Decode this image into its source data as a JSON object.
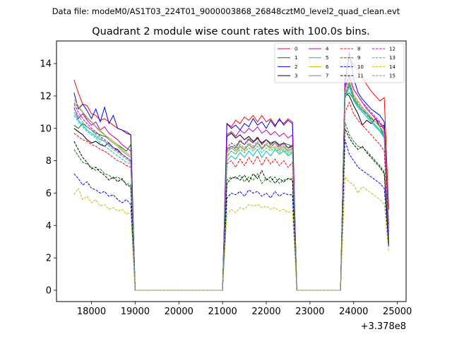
{
  "chart_data": {
    "type": "line",
    "suptitle": "Data file: modeM0/AS1T03_224T01_9000003868_26848cztM0_level2_quad_clean.evt",
    "title": "Quadrant 2 module wise count rates with 100.0s bins.",
    "xlabel": "",
    "ylabel": "",
    "x_offset_label": "+3.378e8",
    "xlim": [
      17200,
      25200
    ],
    "ylim": [
      -0.7,
      15.4
    ],
    "xticks": [
      18000,
      19000,
      20000,
      21000,
      22000,
      23000,
      24000,
      25000
    ],
    "xtick_labels": [
      "18000",
      "19000",
      "20000",
      "21000",
      "22000",
      "23000",
      "24000",
      "25000"
    ],
    "yticks": [
      0,
      2,
      4,
      6,
      8,
      10,
      12,
      14
    ],
    "ytick_labels": [
      "0",
      "2",
      "4",
      "6",
      "8",
      "10",
      "12",
      "14"
    ],
    "legend": {
      "position": "top-right",
      "columns": 4
    },
    "x_segments": [
      {
        "start": 17600,
        "end": 18900,
        "step": 100
      },
      {
        "start": 19000,
        "end": 21000,
        "step": 100
      },
      {
        "start": 21100,
        "end": 22600,
        "step": 100
      },
      {
        "start": 22700,
        "end": 23700,
        "step": 100
      },
      {
        "start": 23800,
        "end": 24800,
        "step": 100
      }
    ],
    "series": [
      {
        "name": "0",
        "color": "#ff0000",
        "dash": "solid",
        "seg1": [
          13.0,
          12.2,
          11.5,
          11.4,
          10.9,
          10.8,
          10.5,
          10.6,
          10.4,
          10.2,
          10.0,
          9.9,
          9.8,
          9.6
        ],
        "seg3": [
          10.3,
          10.1,
          10.5,
          10.3,
          10.7,
          10.5,
          10.8,
          10.4,
          10.8,
          10.4,
          10.6,
          10.2,
          10.5,
          10.3,
          10.6,
          10.4
        ],
        "seg5": [
          13.0,
          14.4,
          13.9,
          13.6,
          13.1,
          12.7,
          12.3,
          12.0,
          11.7,
          11.9,
          5.0
        ]
      },
      {
        "name": "1",
        "color": "#008000",
        "dash": "solid",
        "seg1": [
          10.2,
          10.0,
          10.3,
          10.1,
          9.9,
          9.7,
          9.6,
          9.5,
          9.4,
          9.2,
          9.0,
          8.8,
          8.6,
          9.0
        ],
        "seg3": [
          8.7,
          8.9,
          8.8,
          9.2,
          9.0,
          9.3,
          9.1,
          9.4,
          9.0,
          9.3,
          9.1,
          9.2,
          9.0,
          9.1,
          9.0,
          8.9
        ],
        "seg5": [
          12.0,
          12.2,
          11.8,
          11.4,
          11.1,
          10.9,
          10.6,
          10.4,
          10.1,
          9.5,
          3.0
        ]
      },
      {
        "name": "2",
        "color": "#0000ff",
        "dash": "solid",
        "seg1": [
          12.2,
          11.2,
          11.5,
          11.1,
          10.6,
          11.2,
          10.4,
          11.3,
          10.3,
          10.8,
          10.0,
          9.9,
          9.7,
          9.6
        ],
        "seg3": [
          10.3,
          10.0,
          10.2,
          9.9,
          10.3,
          10.1,
          10.6,
          10.2,
          10.4,
          10.0,
          10.5,
          10.1,
          10.6,
          10.2,
          10.5,
          10.3
        ],
        "seg5": [
          12.7,
          14.7,
          13.1,
          12.2,
          11.8,
          11.5,
          11.2,
          11.0,
          10.8,
          10.4,
          4.0
        ]
      },
      {
        "name": "3",
        "color": "#000000",
        "dash": "solid",
        "seg1": [
          10.0,
          9.8,
          9.6,
          9.3,
          9.1,
          9.2,
          9.0,
          8.9,
          9.1,
          8.8,
          8.7,
          8.4,
          8.2,
          8.0
        ],
        "seg3": [
          9.5,
          9.7,
          9.4,
          9.6,
          9.3,
          9.5,
          9.2,
          9.4,
          9.1,
          9.3,
          9.0,
          9.2,
          8.9,
          9.1,
          8.8,
          8.9
        ],
        "seg5": [
          12.2,
          12.0,
          11.4,
          10.9,
          10.2,
          10.5,
          10.3,
          10.6,
          10.1,
          10.2,
          3.5
        ]
      },
      {
        "name": "4",
        "color": "#bf00bf",
        "dash": "solid",
        "seg1": [
          11.3,
          10.6,
          10.9,
          10.5,
          10.2,
          10.4,
          9.9,
          10.1,
          9.7,
          9.5,
          9.3,
          9.0,
          8.8,
          8.6
        ],
        "seg3": [
          9.6,
          9.8,
          9.5,
          9.9,
          9.7,
          10.0,
          9.8,
          10.1,
          9.7,
          9.9,
          9.6,
          9.8,
          9.5,
          9.7,
          9.4,
          9.6
        ],
        "seg5": [
          12.5,
          13.2,
          12.4,
          12.0,
          11.6,
          11.2,
          10.9,
          10.6,
          10.3,
          9.9,
          3.8
        ]
      },
      {
        "name": "5",
        "color": "#00bfbf",
        "dash": "solid",
        "seg1": [
          11.0,
          10.5,
          10.2,
          9.9,
          9.7,
          9.5,
          9.3,
          9.2,
          9.0,
          8.8,
          8.6,
          8.4,
          8.2,
          8.0
        ],
        "seg3": [
          8.0,
          8.3,
          8.1,
          8.5,
          8.2,
          8.6,
          8.3,
          8.7,
          8.2,
          8.6,
          8.3,
          8.7,
          8.4,
          8.6,
          8.3,
          8.5
        ],
        "seg5": [
          11.8,
          12.6,
          11.7,
          11.3,
          11.0,
          10.7,
          10.4,
          10.1,
          9.8,
          9.4,
          3.2
        ]
      },
      {
        "name": "6",
        "color": "#bfbf00",
        "dash": "solid",
        "seg1": [
          11.8,
          11.4,
          11.0,
          10.7,
          10.4,
          10.1,
          9.9,
          9.6,
          9.4,
          9.2,
          9.0,
          8.7,
          8.5,
          8.3
        ],
        "seg3": [
          8.2,
          8.6,
          8.4,
          8.9,
          8.6,
          9.0,
          8.7,
          9.1,
          8.8,
          9.0,
          8.7,
          8.9,
          8.6,
          8.8,
          8.5,
          8.7
        ],
        "seg5": [
          12.3,
          13.0,
          12.1,
          11.7,
          11.3,
          11.0,
          10.7,
          10.4,
          10.1,
          9.7,
          3.3
        ]
      },
      {
        "name": "7",
        "color": "#808080",
        "dash": "solid",
        "seg1": [
          11.6,
          11.3,
          11.0,
          10.6,
          10.4,
          10.1,
          9.8,
          9.6,
          9.3,
          9.1,
          8.9,
          8.6,
          8.4,
          8.2
        ],
        "seg3": [
          8.5,
          8.8,
          8.6,
          8.9,
          8.7,
          9.0,
          8.8,
          9.1,
          8.7,
          9.0,
          8.8,
          9.1,
          8.7,
          8.9,
          8.6,
          8.8
        ],
        "seg5": [
          12.0,
          12.8,
          11.9,
          11.5,
          11.2,
          10.9,
          10.5,
          10.2,
          9.9,
          9.5,
          3.4
        ]
      },
      {
        "name": "8",
        "color": "#ff0000",
        "dash": "dashed",
        "seg1": [
          9.7,
          9.5,
          9.3,
          9.2,
          9.0,
          8.9,
          8.7,
          8.6,
          8.4,
          8.2,
          8.0,
          7.9,
          7.7,
          7.6
        ],
        "seg3": [
          7.8,
          8.0,
          7.6,
          8.1,
          7.7,
          8.2,
          7.8,
          8.3,
          7.7,
          8.2,
          7.8,
          8.1,
          7.7,
          8.0,
          7.6,
          7.9
        ],
        "seg5": [
          11.0,
          11.6,
          10.9,
          10.5,
          10.2,
          9.9,
          9.6,
          9.3,
          9.0,
          8.6,
          3.0
        ]
      },
      {
        "name": "9",
        "color": "#008000",
        "dash": "dashed",
        "seg1": [
          8.7,
          8.3,
          7.9,
          7.8,
          7.6,
          7.4,
          7.5,
          7.2,
          7.1,
          6.9,
          7.0,
          6.8,
          6.6,
          6.5
        ],
        "seg3": [
          6.8,
          7.0,
          6.9,
          7.1,
          6.7,
          7.0,
          6.8,
          7.2,
          6.6,
          6.9,
          6.7,
          7.0,
          6.6,
          6.8,
          6.9,
          6.9
        ],
        "seg5": [
          10.4,
          9.6,
          9.2,
          8.9,
          8.8,
          8.6,
          8.3,
          8.0,
          7.7,
          7.3,
          2.9
        ]
      },
      {
        "name": "10",
        "color": "#0000ff",
        "dash": "dashed",
        "seg1": [
          7.2,
          6.9,
          6.5,
          6.7,
          6.3,
          6.2,
          6.0,
          6.1,
          5.8,
          5.9,
          5.6,
          5.4,
          5.6,
          5.3
        ],
        "seg3": [
          5.7,
          6.0,
          5.9,
          6.1,
          5.8,
          6.2,
          6.0,
          6.1,
          5.8,
          6.0,
          5.7,
          6.1,
          5.8,
          6.0,
          5.9,
          5.9
        ],
        "seg5": [
          9.3,
          8.4,
          8.0,
          7.6,
          7.4,
          7.2,
          7.0,
          6.8,
          6.6,
          6.3,
          2.7
        ]
      },
      {
        "name": "11",
        "color": "#000000",
        "dash": "dashed",
        "seg1": [
          9.2,
          8.7,
          8.2,
          7.9,
          7.5,
          7.6,
          7.3,
          7.1,
          6.8,
          7.0,
          6.7,
          6.9,
          6.5,
          6.4
        ],
        "seg3": [
          6.6,
          6.9,
          7.0,
          6.8,
          7.1,
          6.7,
          7.2,
          6.9,
          7.4,
          6.8,
          7.0,
          6.6,
          6.9,
          6.7,
          6.9,
          6.8
        ],
        "seg5": [
          10.0,
          9.4,
          9.0,
          8.7,
          8.9,
          8.5,
          8.2,
          7.9,
          7.6,
          7.2,
          2.8
        ]
      },
      {
        "name": "12",
        "color": "#bf00bf",
        "dash": "dashed",
        "seg1": [
          11.5,
          11.0,
          10.6,
          10.3,
          10.0,
          9.8,
          9.5,
          9.3,
          9.1,
          8.8,
          8.6,
          8.4,
          8.2,
          8.0
        ],
        "seg3": [
          8.8,
          9.1,
          8.9,
          9.3,
          9.0,
          9.4,
          9.1,
          9.5,
          9.0,
          9.3,
          9.0,
          9.2,
          8.9,
          9.1,
          8.8,
          9.0
        ],
        "seg5": [
          12.6,
          13.3,
          12.4,
          12.0,
          11.6,
          11.3,
          11.0,
          10.7,
          10.4,
          10.0,
          3.6
        ]
      },
      {
        "name": "13",
        "color": "#00bfbf",
        "dash": "dashed",
        "seg1": [
          10.8,
          10.4,
          10.1,
          9.8,
          9.6,
          9.4,
          9.1,
          8.9,
          8.7,
          8.5,
          8.3,
          8.1,
          7.9,
          7.8
        ],
        "seg3": [
          8.3,
          8.6,
          8.4,
          8.7,
          8.5,
          8.8,
          8.6,
          8.9,
          8.5,
          8.8,
          8.6,
          8.8,
          8.5,
          8.7,
          8.4,
          8.6
        ],
        "seg5": [
          11.9,
          12.7,
          11.8,
          11.4,
          11.1,
          10.8,
          10.5,
          10.2,
          9.9,
          9.5,
          3.3
        ]
      },
      {
        "name": "14",
        "color": "#bfbf00",
        "dash": "dashed",
        "seg1": [
          5.9,
          6.3,
          5.6,
          5.8,
          5.4,
          5.6,
          5.2,
          5.3,
          5.0,
          5.1,
          4.9,
          5.0,
          4.7,
          4.8
        ],
        "seg3": [
          4.7,
          5.0,
          4.8,
          5.1,
          5.0,
          5.3,
          5.2,
          5.3,
          5.1,
          5.2,
          5.0,
          5.1,
          4.9,
          5.0,
          4.8,
          4.9
        ],
        "seg5": [
          7.0,
          6.7,
          6.5,
          6.0,
          6.4,
          6.2,
          6.0,
          5.8,
          5.6,
          5.3,
          2.4
        ]
      },
      {
        "name": "15",
        "color": "#808080",
        "dash": "dashed",
        "seg1": [
          11.2,
          10.8,
          10.4,
          10.1,
          9.9,
          9.6,
          9.4,
          9.2,
          8.9,
          8.7,
          8.5,
          8.3,
          8.1,
          7.9
        ],
        "seg3": [
          8.6,
          8.9,
          8.7,
          9.0,
          8.8,
          9.1,
          8.9,
          9.2,
          8.8,
          9.1,
          8.9,
          9.1,
          8.8,
          9.0,
          8.7,
          8.9
        ],
        "seg5": [
          12.1,
          12.9,
          12.0,
          11.6,
          11.3,
          11.0,
          10.7,
          10.4,
          10.1,
          9.7,
          3.4
        ]
      }
    ]
  }
}
